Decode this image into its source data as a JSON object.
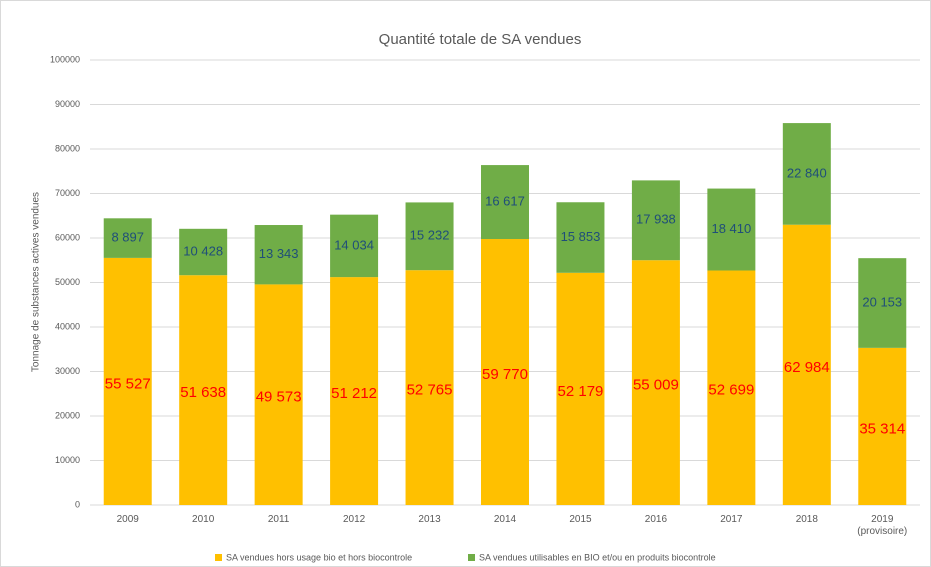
{
  "chart_data": {
    "type": "stacked_bar",
    "title": "Quantité totale de SA vendues",
    "ylabel": "Tonnage de substances actives vendues",
    "categories": [
      "2009",
      "2010",
      "2011",
      "2012",
      "2013",
      "2014",
      "2015",
      "2016",
      "2017",
      "2018",
      "2019 (provisoire)"
    ],
    "series": [
      {
        "name": "SA vendues hors usage bio et hors biocontrole",
        "color": "#ffc000",
        "label_color": "#ff0000",
        "values": [
          55527,
          51638,
          49573,
          51212,
          52765,
          59770,
          52179,
          55009,
          52699,
          62984,
          35314
        ],
        "value_labels": [
          "55 527",
          "51 638",
          "49 573",
          "51 212",
          "52 765",
          "59 770",
          "52 179",
          "55 009",
          "52 699",
          "62 984",
          "35 314"
        ]
      },
      {
        "name": "SA vendues  utilisables en BIO et/ou en produits biocontrole",
        "color": "#70ad47",
        "label_color": "#1f4e79",
        "values": [
          8897,
          10428,
          13343,
          14034,
          15232,
          16617,
          15853,
          17938,
          18410,
          22840,
          20153
        ],
        "value_labels": [
          "8 897",
          "10 428",
          "13 343",
          "14 034",
          "15 232",
          "16 617",
          "15 853",
          "17 938",
          "18 410",
          "22 840",
          "20 153"
        ]
      }
    ],
    "ylim": [
      0,
      100000
    ],
    "yticks": [
      0,
      10000,
      20000,
      30000,
      40000,
      50000,
      60000,
      70000,
      80000,
      90000,
      100000
    ],
    "grid": true,
    "legend": "bottom"
  }
}
